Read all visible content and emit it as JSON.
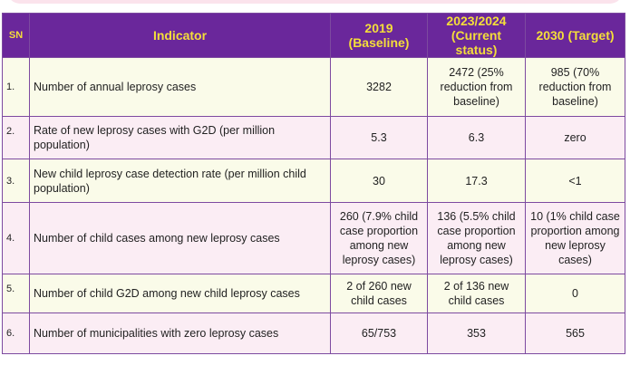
{
  "header": {
    "sn": "SN",
    "indicator": "Indicator",
    "col2019": "2019 (Baseline)",
    "col2023": "2023/2024 (Current status)",
    "col2030": "2030 (Target)"
  },
  "rows": [
    {
      "sn": "1.",
      "indicator": "Number of annual leprosy cases",
      "baseline": "3282",
      "current": "2472 (25% reduction from baseline)",
      "target": "985 (70% reduction from baseline)"
    },
    {
      "sn": "2.",
      "indicator": "Rate of new leprosy cases with G2D (per million population)",
      "baseline": "5.3",
      "current": "6.3",
      "target": "zero"
    },
    {
      "sn": "3.",
      "indicator": "New child leprosy case detection rate (per million child population)",
      "baseline": "30",
      "current": "17.3",
      "target": "<1"
    },
    {
      "sn": "4.",
      "indicator": "Number of child cases among new leprosy cases",
      "baseline": "260 (7.9% child case proportion among new leprosy cases)",
      "current": "136 (5.5% child case proportion among new leprosy cases)",
      "target": "10 (1% child case proportion among new leprosy cases)"
    },
    {
      "sn": "5.",
      "indicator": "Number of child G2D among new child leprosy cases",
      "baseline": "2 of 260 new child cases",
      "current": "2 of 136 new child cases",
      "target": "0"
    },
    {
      "sn": "6.",
      "indicator": "Number of municipalities with zero leprosy cases",
      "baseline": "65/753",
      "current": "353",
      "target": "565"
    }
  ]
}
